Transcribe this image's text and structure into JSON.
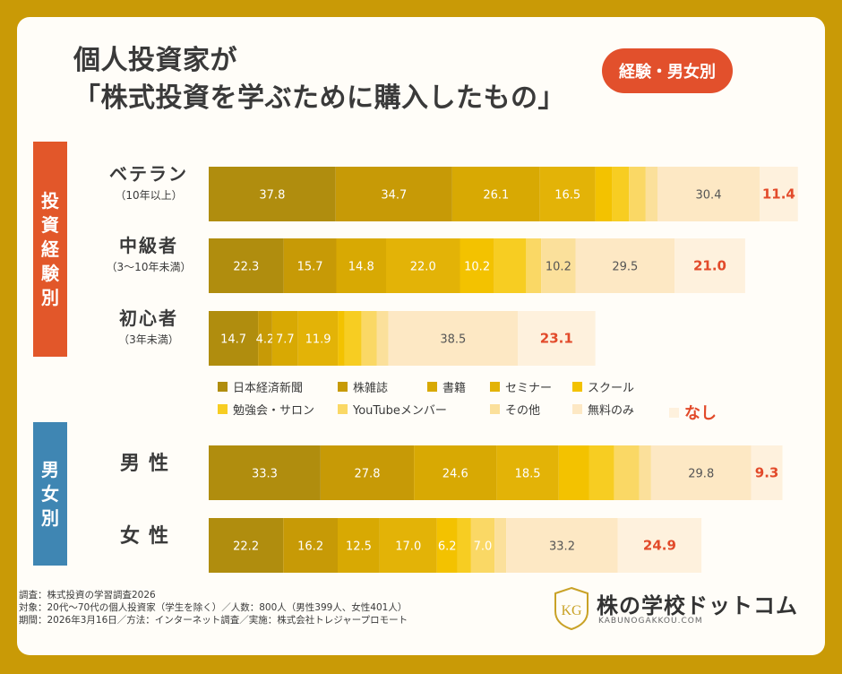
{
  "title": {
    "line1": "個人投資家が",
    "line2": "「株式投資を学ぶために購入したもの」",
    "badge": "経験・男女別"
  },
  "groups": {
    "experience": "投資経験別",
    "gender": "男女別"
  },
  "row_labels": [
    {
      "main": "ベテラン",
      "sub": "（10年以上）"
    },
    {
      "main": "中級者",
      "sub": "（3〜10年未満）"
    },
    {
      "main": "初心者",
      "sub": "（3年未満）"
    },
    {
      "main": "男性",
      "sub": ""
    },
    {
      "main": "女性",
      "sub": ""
    }
  ],
  "chart_data": {
    "type": "bar",
    "orientation": "horizontal",
    "stacked": true,
    "categories": [
      "ベテラン（10年以上）",
      "中級者（3〜10年未満）",
      "初心者（3年未満）",
      "男性",
      "女性"
    ],
    "series": [
      {
        "name": "日本経済新聞",
        "color": "#b08d0e",
        "values": [
          37.8,
          22.3,
          14.7,
          33.3,
          22.2
        ]
      },
      {
        "name": "株雑誌",
        "color": "#c79a06",
        "values": [
          34.7,
          15.7,
          4.2,
          27.8,
          16.2
        ]
      },
      {
        "name": "書籍",
        "color": "#d8a903",
        "values": [
          26.1,
          14.8,
          7.7,
          24.6,
          12.5
        ]
      },
      {
        "name": "セミナー",
        "color": "#e3b307",
        "values": [
          16.5,
          22.0,
          11.9,
          18.5,
          17.0
        ]
      },
      {
        "name": "スクール",
        "color": "#f3c200",
        "values": [
          5.0,
          10.2,
          2.0,
          9.0,
          6.2
        ]
      },
      {
        "name": "勉強会・サロン",
        "color": "#f7cd22",
        "values": [
          5.0,
          9.5,
          5.0,
          7.5,
          4.0
        ]
      },
      {
        "name": "YouTubeメンバー",
        "color": "#fad865",
        "values": [
          5.0,
          4.5,
          4.5,
          7.5,
          7.0
        ]
      },
      {
        "name": "その他",
        "color": "#fbe09b",
        "values": [
          3.5,
          10.2,
          3.5,
          3.5,
          3.5
        ]
      },
      {
        "name": "無料のみ",
        "color": "#fde8c4",
        "values": [
          30.4,
          29.5,
          38.5,
          29.8,
          33.2
        ]
      },
      {
        "name": "なし",
        "color": "#fef1dd",
        "values": [
          11.4,
          21.0,
          23.1,
          9.3,
          24.9
        ]
      }
    ],
    "labels": [
      [
        "37.8",
        "34.7",
        "26.1",
        "16.5",
        "",
        "",
        "",
        "",
        "30.4",
        "11.4"
      ],
      [
        "22.3",
        "15.7",
        "14.8",
        "22.0",
        "10.2",
        "",
        "",
        "10.2",
        "29.5",
        "21.0"
      ],
      [
        "14.7",
        "4.2",
        "7.7",
        "11.9",
        "",
        "",
        "",
        "",
        "38.5",
        "23.1"
      ],
      [
        "33.3",
        "27.8",
        "24.6",
        "18.5",
        "",
        "",
        "",
        "",
        "29.8",
        "9.3"
      ],
      [
        "22.2",
        "16.2",
        "12.5",
        "17.0",
        "6.2",
        "",
        "7.0",
        "",
        "33.2",
        "24.9"
      ]
    ],
    "legend_position": "middle",
    "highlight_color": "#e24a2a"
  },
  "footer": {
    "line1": "調査：株式投資の学習調査2026",
    "line2": "対象：20代〜70代の個人投資家（学生を除く）／人数：800人（男性399人、女性401人）",
    "line3": "期間：2026年3月16日／方法：インターネット調査／実施：株式会社トレジャープロモート"
  },
  "logo": {
    "mark": "KG",
    "name": "株の学校ドットコム",
    "url": "KABUNOGAKKOU.COM"
  }
}
